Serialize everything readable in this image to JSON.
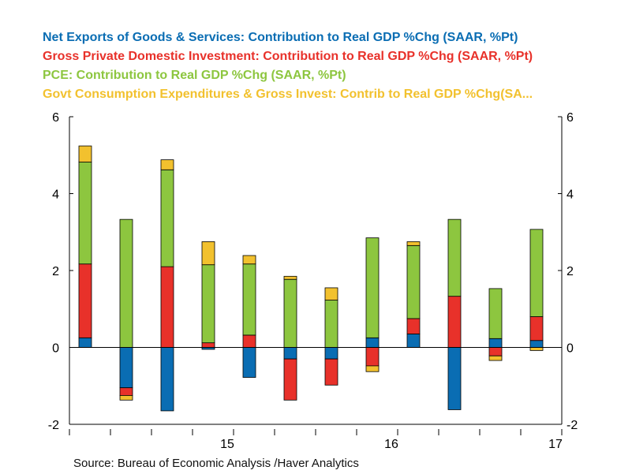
{
  "chart_data": {
    "type": "bar",
    "stacked": true,
    "series": [
      {
        "name": "Net Exports of Goods & Services: Contribution to Real GDP %Chg (SAAR, %Pt)",
        "color": "#0a6db3",
        "values": [
          0.25,
          -1.05,
          -1.65,
          -0.05,
          -0.78,
          -0.3,
          -0.3,
          0.25,
          0.35,
          -1.62,
          0.23,
          0.18
        ]
      },
      {
        "name": "Gross Private Domestic Investment: Contribution to Real GDP %Chg (SAAR, %Pt)",
        "color": "#e8312a",
        "values": [
          1.92,
          -0.2,
          2.1,
          0.12,
          0.32,
          -1.07,
          -0.68,
          -0.48,
          0.4,
          1.33,
          -0.22,
          0.62
        ]
      },
      {
        "name": "PCE: Contribution to Real GDP %Chg (SAAR, %Pt)",
        "color": "#8dc63f",
        "values": [
          2.65,
          3.33,
          2.52,
          2.03,
          1.85,
          1.77,
          1.23,
          2.6,
          1.9,
          2.0,
          1.3,
          2.27
        ]
      },
      {
        "name": "Govt Consumption Expenditures & Gross Invest: Contrib to Real GDP %Chg(SA...",
        "color": "#f2c12e",
        "values": [
          0.42,
          -0.12,
          0.26,
          0.6,
          0.22,
          0.08,
          0.32,
          -0.15,
          0.1,
          0.0,
          -0.12,
          -0.08
        ]
      }
    ],
    "y_ticks": [
      "-2",
      "0",
      "2",
      "4",
      "6"
    ],
    "ylim": [
      -2,
      6
    ],
    "x_tick_labels": [
      "15",
      "16",
      "17"
    ],
    "source": "Source:  Bureau of Economic Analysis /Haver Analytics"
  }
}
